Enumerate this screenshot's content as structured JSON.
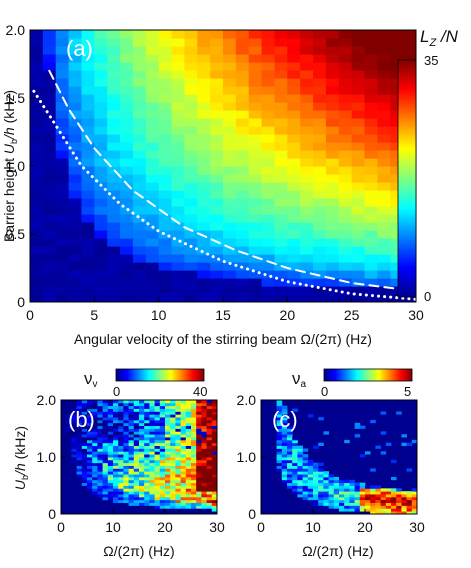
{
  "chart_data": [
    {
      "type": "heatmap",
      "panel_label": "(a)",
      "xlabel": "Angular velocity of the stirring beam Ω/(2π) (Hz)",
      "ylabel": "Barrier height U_b/h (kHz)",
      "xlim": [
        0,
        30
      ],
      "ylim": [
        0,
        2.0
      ],
      "x_ticks": [
        "0",
        "5",
        "10",
        "15",
        "20",
        "25",
        "30"
      ],
      "y_ticks": [
        "0",
        "0.5",
        "1.0",
        "1.5",
        "2.0"
      ],
      "colorbar": {
        "title": "L_Z /N",
        "min": 0,
        "max": 35,
        "tick_labels": [
          "0",
          "35"
        ]
      },
      "grid": {
        "nx": 30,
        "ny": 34,
        "note_on_values": "L_Z/N rises with both Ω and U_b; ~0 below the dashed/dotted curves, up to ~35 at top-right"
      },
      "curves": [
        {
          "style": "dashed",
          "color": "#ffffff",
          "x": [
            1.5,
            3,
            5,
            8,
            12,
            16,
            20,
            25,
            30
          ],
          "y": [
            1.7,
            1.42,
            1.13,
            0.82,
            0.55,
            0.38,
            0.25,
            0.14,
            0.08
          ]
        },
        {
          "style": "dotted",
          "color": "#ffffff",
          "x": [
            0.3,
            2,
            4,
            7,
            10,
            15,
            20,
            25,
            30
          ],
          "y": [
            1.55,
            1.3,
            1.0,
            0.72,
            0.52,
            0.3,
            0.15,
            0.06,
            0.02
          ]
        }
      ]
    },
    {
      "type": "heatmap",
      "panel_label": "(b)",
      "xlabel": "Ω/(2π) (Hz)",
      "ylabel": "U_b/h (kHz)",
      "xlim": [
        0,
        30
      ],
      "ylim": [
        0,
        2.0
      ],
      "x_ticks": [
        "0",
        "10",
        "20",
        "30"
      ],
      "y_ticks": [
        "0",
        "1.0",
        "2.0"
      ],
      "colorbar": {
        "symbol": "ν_v",
        "min": 0,
        "max": 40,
        "tick_labels": [
          "0",
          "40"
        ]
      }
    },
    {
      "type": "heatmap",
      "panel_label": "(c)",
      "xlabel": "Ω/(2π) (Hz)",
      "ylabel": "",
      "xlim": [
        0,
        30
      ],
      "ylim": [
        0,
        2.0
      ],
      "x_ticks": [
        "0",
        "10",
        "20",
        "30"
      ],
      "y_ticks": [
        "0",
        "1.0",
        "2.0"
      ],
      "colorbar": {
        "symbol": "ν_a",
        "min": 0,
        "max": 5,
        "tick_labels": [
          "0",
          "5"
        ]
      }
    }
  ],
  "colors": {
    "background_low": "#00008f",
    "mid": "#00ffff",
    "high": "#ffff00",
    "top": "#800000",
    "curve": "#ffffff"
  }
}
